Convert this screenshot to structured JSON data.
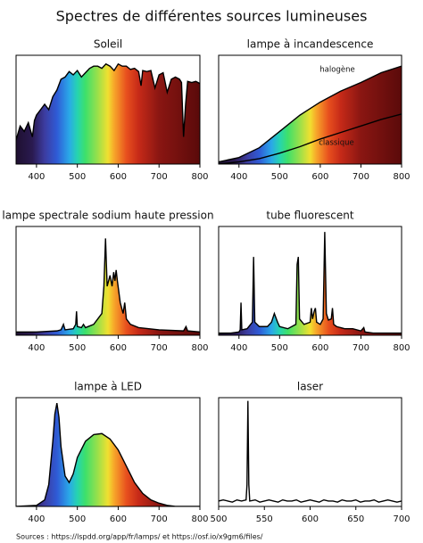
{
  "title": "Spectres de différentes sources lumineuses",
  "source": "Sources : https://lspdd.org/app/fr/lamps/ et https://osf.io/x9gm6/files/",
  "chart_data": [
    {
      "type": "line",
      "title": "Soleil",
      "spectrum_fill": true,
      "xlim": [
        350,
        800
      ],
      "ylim": [
        0,
        1
      ],
      "xticks": [
        400,
        500,
        600,
        700,
        800
      ],
      "grid": false,
      "series": [
        {
          "color": "#000000",
          "x": [
            350,
            360,
            370,
            380,
            390,
            395,
            400,
            410,
            420,
            430,
            440,
            450,
            460,
            470,
            480,
            490,
            500,
            510,
            520,
            530,
            540,
            550,
            560,
            570,
            580,
            590,
            600,
            610,
            620,
            630,
            640,
            650,
            656,
            660,
            670,
            680,
            690,
            700,
            710,
            720,
            730,
            740,
            750,
            755,
            760,
            765,
            770,
            780,
            790,
            800
          ],
          "values": [
            0.22,
            0.35,
            0.3,
            0.38,
            0.25,
            0.4,
            0.45,
            0.5,
            0.55,
            0.5,
            0.62,
            0.68,
            0.78,
            0.8,
            0.85,
            0.82,
            0.86,
            0.8,
            0.84,
            0.88,
            0.9,
            0.9,
            0.88,
            0.92,
            0.9,
            0.86,
            0.92,
            0.9,
            0.9,
            0.87,
            0.88,
            0.85,
            0.72,
            0.86,
            0.85,
            0.86,
            0.7,
            0.82,
            0.84,
            0.66,
            0.78,
            0.8,
            0.78,
            0.75,
            0.25,
            0.55,
            0.76,
            0.75,
            0.76,
            0.74
          ]
        }
      ]
    },
    {
      "type": "line",
      "title": "lampe à incandescence",
      "spectrum_fill": true,
      "xlim": [
        350,
        800
      ],
      "ylim": [
        0,
        1
      ],
      "xticks": [
        400,
        500,
        600,
        700,
        800
      ],
      "grid": false,
      "annotations": [
        "halogène",
        "classique"
      ],
      "series": [
        {
          "color": "#000000",
          "x": [
            350,
            400,
            450,
            500,
            550,
            600,
            650,
            700,
            750,
            800
          ],
          "values": [
            0.02,
            0.06,
            0.15,
            0.3,
            0.45,
            0.57,
            0.67,
            0.75,
            0.84,
            0.9
          ]
        },
        {
          "color": "#000000",
          "x": [
            350,
            400,
            450,
            500,
            550,
            600,
            650,
            700,
            750,
            800
          ],
          "values": [
            0.0,
            0.02,
            0.05,
            0.1,
            0.16,
            0.23,
            0.29,
            0.35,
            0.41,
            0.46
          ]
        }
      ]
    },
    {
      "type": "line",
      "title": "lampe spectrale sodium haute pression",
      "spectrum_fill": true,
      "xlim": [
        350,
        800
      ],
      "ylim": [
        0,
        1
      ],
      "xticks": [
        400,
        500,
        600,
        700,
        800
      ],
      "grid": false,
      "series": [
        {
          "color": "#000000",
          "x": [
            350,
            400,
            450,
            460,
            466,
            470,
            490,
            496,
            498,
            500,
            510,
            515,
            520,
            540,
            560,
            565,
            569,
            573,
            580,
            585,
            589,
            592,
            595,
            598,
            605,
            612,
            616,
            620,
            630,
            650,
            700,
            760,
            766,
            770,
            800
          ],
          "values": [
            0.03,
            0.03,
            0.04,
            0.05,
            0.1,
            0.05,
            0.06,
            0.1,
            0.22,
            0.08,
            0.07,
            0.1,
            0.07,
            0.1,
            0.2,
            0.45,
            0.89,
            0.45,
            0.55,
            0.45,
            0.58,
            0.5,
            0.6,
            0.5,
            0.3,
            0.2,
            0.3,
            0.15,
            0.1,
            0.07,
            0.05,
            0.04,
            0.08,
            0.04,
            0.03
          ]
        }
      ]
    },
    {
      "type": "line",
      "title": "tube fluorescent",
      "spectrum_fill": true,
      "xlim": [
        350,
        800
      ],
      "ylim": [
        0,
        1
      ],
      "xticks": [
        400,
        500,
        600,
        700,
        800
      ],
      "grid": false,
      "series": [
        {
          "color": "#000000",
          "x": [
            350,
            380,
            400,
            403,
            405,
            407,
            420,
            433,
            436,
            439,
            450,
            470,
            480,
            487,
            495,
            500,
            520,
            540,
            543,
            546,
            549,
            560,
            575,
            578,
            581,
            585,
            588,
            591,
            600,
            607,
            611,
            615,
            620,
            627,
            630,
            633,
            640,
            660,
            680,
            700,
            707,
            710,
            730,
            800
          ],
          "values": [
            0.02,
            0.02,
            0.03,
            0.05,
            0.3,
            0.05,
            0.06,
            0.12,
            0.72,
            0.12,
            0.08,
            0.08,
            0.12,
            0.2,
            0.12,
            0.08,
            0.06,
            0.1,
            0.65,
            0.72,
            0.15,
            0.1,
            0.12,
            0.25,
            0.15,
            0.22,
            0.25,
            0.12,
            0.1,
            0.15,
            0.95,
            0.2,
            0.14,
            0.15,
            0.25,
            0.1,
            0.08,
            0.06,
            0.06,
            0.04,
            0.07,
            0.03,
            0.02,
            0.02
          ]
        }
      ]
    },
    {
      "type": "line",
      "title": "lampe à LED",
      "spectrum_fill": true,
      "xlim": [
        350,
        800
      ],
      "ylim": [
        0,
        1
      ],
      "xticks": [
        400,
        500,
        600,
        700,
        800
      ],
      "grid": false,
      "series": [
        {
          "color": "#000000",
          "x": [
            350,
            400,
            420,
            430,
            440,
            445,
            450,
            455,
            460,
            470,
            480,
            490,
            500,
            520,
            540,
            560,
            580,
            600,
            620,
            640,
            660,
            680,
            700,
            720,
            740,
            760,
            780,
            800
          ],
          "values": [
            0.0,
            0.01,
            0.06,
            0.2,
            0.6,
            0.85,
            0.95,
            0.82,
            0.55,
            0.28,
            0.22,
            0.3,
            0.45,
            0.6,
            0.66,
            0.67,
            0.62,
            0.52,
            0.37,
            0.22,
            0.12,
            0.06,
            0.03,
            0.01,
            0.0,
            0.0,
            0.0,
            0.0
          ]
        }
      ]
    },
    {
      "type": "line",
      "title": "laser",
      "spectrum_fill": false,
      "xlim": [
        500,
        700
      ],
      "ylim": [
        0,
        1
      ],
      "xticks": [
        500,
        550,
        600,
        650,
        700
      ],
      "grid": false,
      "series": [
        {
          "color": "#000000",
          "x": [
            500,
            505,
            510,
            515,
            520,
            525,
            530,
            531,
            532,
            533,
            534,
            540,
            545,
            550,
            555,
            560,
            565,
            570,
            575,
            580,
            585,
            590,
            595,
            600,
            605,
            610,
            615,
            620,
            625,
            630,
            635,
            640,
            645,
            650,
            655,
            660,
            665,
            670,
            675,
            680,
            685,
            690,
            695,
            700
          ],
          "values": [
            0.05,
            0.06,
            0.05,
            0.04,
            0.06,
            0.05,
            0.06,
            0.2,
            0.97,
            0.2,
            0.05,
            0.06,
            0.04,
            0.05,
            0.06,
            0.05,
            0.04,
            0.06,
            0.05,
            0.05,
            0.06,
            0.04,
            0.05,
            0.06,
            0.05,
            0.04,
            0.06,
            0.05,
            0.05,
            0.04,
            0.06,
            0.05,
            0.05,
            0.06,
            0.04,
            0.05,
            0.05,
            0.06,
            0.04,
            0.05,
            0.06,
            0.05,
            0.04,
            0.05
          ]
        }
      ]
    }
  ]
}
